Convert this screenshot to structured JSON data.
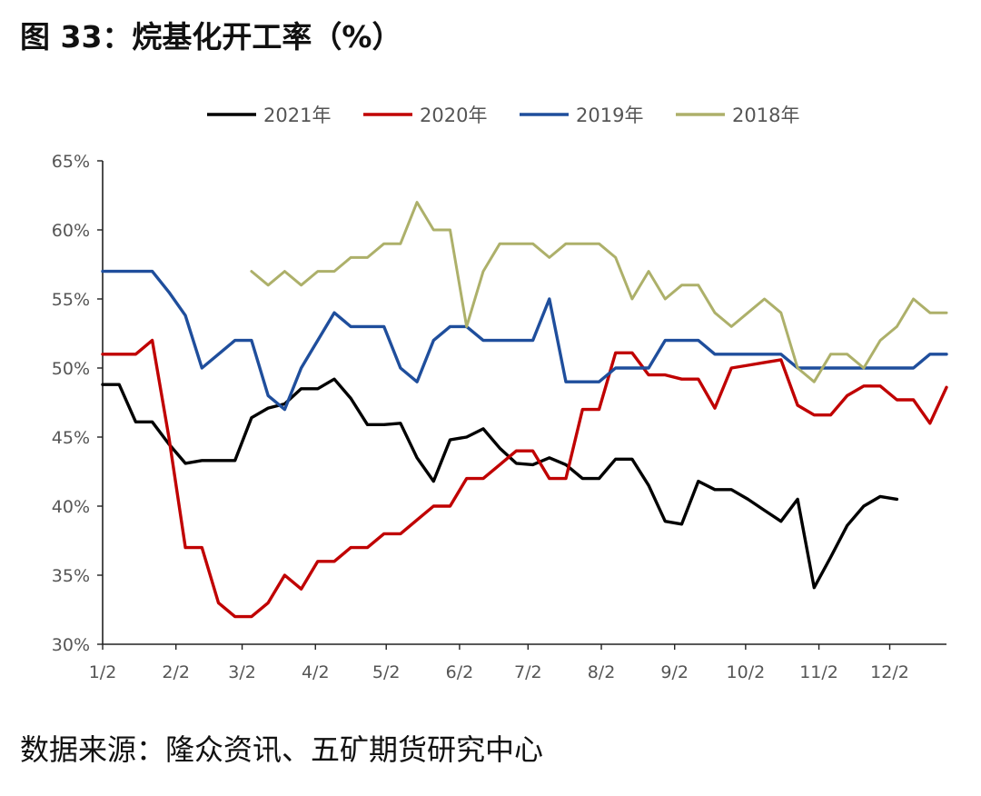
{
  "title": "图 33：烷基化开工率（%）",
  "source": "数据来源：隆众资讯、五矿期货研究中心",
  "chart_data": {
    "type": "line",
    "xlabel": "",
    "ylabel": "",
    "ylim": [
      30,
      65
    ],
    "xlim": [
      0,
      51
    ],
    "y_ticks": [
      "30%",
      "35%",
      "40%",
      "45%",
      "50%",
      "55%",
      "60%",
      "65%"
    ],
    "y_tick_values": [
      30,
      35,
      40,
      45,
      50,
      55,
      60,
      65
    ],
    "x_ticks": [
      "1/2",
      "2/2",
      "3/2",
      "4/2",
      "5/2",
      "6/2",
      "7/2",
      "8/2",
      "9/2",
      "10/2",
      "11/2",
      "12/2"
    ],
    "x_tick_positions": [
      0,
      4.43,
      8.43,
      12.86,
      17.14,
      21.57,
      25.71,
      30.14,
      34.57,
      38.86,
      43.29,
      47.57
    ],
    "legend_position": "top",
    "series": [
      {
        "name": "2021年",
        "color": "#000000",
        "x": [
          0,
          1,
          2,
          3,
          4,
          5,
          6,
          7,
          8,
          9,
          10,
          11,
          12,
          13,
          14,
          15,
          16,
          17,
          18,
          19,
          20,
          21,
          22,
          23,
          24,
          25,
          26,
          27,
          28,
          29,
          30,
          31,
          32,
          33,
          34,
          35,
          36,
          37,
          38,
          39,
          40,
          41,
          42,
          43,
          44,
          45,
          46,
          47,
          48
        ],
        "values": [
          48.8,
          48.8,
          46.1,
          46.1,
          44.5,
          43.1,
          43.3,
          43.3,
          43.3,
          46.4,
          47.1,
          47.4,
          48.5,
          48.5,
          49.2,
          47.8,
          45.9,
          45.9,
          46.0,
          43.5,
          41.8,
          44.8,
          45.0,
          45.6,
          44.2,
          43.1,
          43.0,
          43.5,
          43.0,
          42.0,
          42.0,
          43.4,
          43.4,
          41.5,
          38.9,
          38.7,
          41.8,
          41.2,
          41.2,
          40.5,
          39.7,
          38.9,
          40.5,
          34.1,
          36.3,
          38.6,
          40.0,
          40.7,
          40.5
        ]
      },
      {
        "name": "2020年",
        "color": "#c00000",
        "x": [
          0,
          1,
          2,
          3,
          4,
          5,
          6,
          7,
          8,
          9,
          10,
          11,
          12,
          13,
          14,
          15,
          16,
          17,
          18,
          19,
          20,
          21,
          22,
          23,
          24,
          25,
          26,
          27,
          28,
          29,
          30,
          31,
          32,
          33,
          34,
          35,
          36,
          37,
          38,
          39,
          40,
          41,
          42,
          43,
          44,
          45,
          46,
          47,
          48,
          49,
          50,
          51
        ],
        "values": [
          51,
          51,
          51,
          52,
          45,
          37,
          37,
          33,
          32,
          32,
          33,
          35,
          34,
          36,
          36,
          37,
          37,
          38,
          38,
          39,
          40,
          40,
          42,
          42,
          43,
          44,
          44,
          42,
          42,
          47,
          47,
          51.1,
          51.1,
          49.5,
          49.5,
          49.2,
          49.2,
          47.1,
          50,
          50.2,
          50.4,
          50.6,
          47.3,
          46.6,
          46.6,
          48,
          48.7,
          48.7,
          47.7,
          47.7,
          46,
          48.6
        ]
      },
      {
        "name": "2019年",
        "color": "#1f4e9c",
        "x": [
          0,
          1,
          2,
          3,
          4,
          5,
          6,
          7,
          8,
          9,
          10,
          11,
          12,
          13,
          14,
          15,
          16,
          17,
          18,
          19,
          20,
          21,
          22,
          23,
          24,
          25,
          26,
          27,
          28,
          29,
          30,
          31,
          32,
          33,
          34,
          35,
          36,
          37,
          38,
          39,
          40,
          41,
          42,
          43,
          44,
          45,
          46,
          47,
          48,
          49,
          50,
          51
        ],
        "values": [
          57,
          57,
          57,
          57,
          55.5,
          53.8,
          50,
          51,
          52,
          52,
          48,
          47,
          50,
          52,
          54,
          53,
          53,
          53,
          50,
          49,
          52,
          53,
          53,
          52,
          52,
          52,
          52,
          55,
          49,
          49,
          49,
          50,
          50,
          50,
          52,
          52,
          52,
          51,
          51,
          51,
          51,
          51,
          50,
          50,
          50,
          50,
          50,
          50,
          50,
          50,
          51,
          51
        ]
      },
      {
        "name": "2018年",
        "color": "#adb06a",
        "x": [
          9,
          10,
          11,
          12,
          13,
          14,
          15,
          16,
          17,
          18,
          19,
          20,
          21,
          22,
          23,
          24,
          25,
          26,
          27,
          28,
          29,
          30,
          31,
          32,
          33,
          34,
          35,
          36,
          37,
          38,
          39,
          40,
          41,
          42,
          43,
          44,
          45,
          46,
          47,
          48,
          49,
          50,
          51
        ],
        "values": [
          57,
          56,
          57,
          56,
          57,
          57,
          58,
          58,
          59,
          59,
          62,
          60,
          60,
          53,
          57,
          59,
          59,
          59,
          58,
          59,
          59,
          59,
          58,
          55,
          57,
          55,
          56,
          56,
          54,
          53,
          54,
          55,
          54,
          50,
          49,
          51,
          51,
          50,
          52,
          53,
          55,
          54,
          54
        ]
      }
    ]
  }
}
